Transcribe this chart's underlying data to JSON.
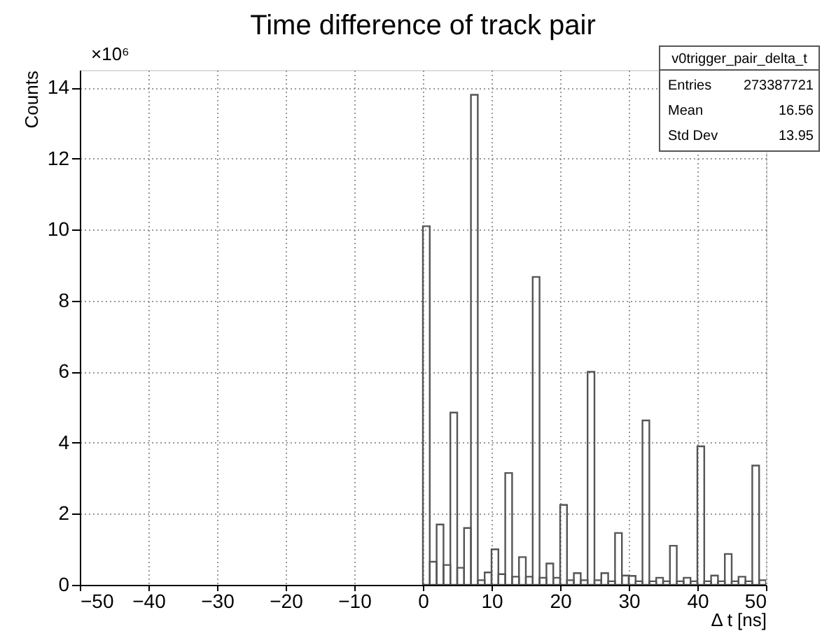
{
  "chart_data": {
    "type": "histogram",
    "title": "Time difference of track pair",
    "xlabel": "Δ t [ns]",
    "ylabel": "Counts",
    "bins": [
      0,
      1,
      2,
      3,
      4,
      5,
      6,
      7,
      8,
      9,
      10,
      11,
      12,
      13,
      14,
      15,
      16,
      17,
      18,
      19,
      20,
      21,
      22,
      23,
      24,
      25,
      26,
      27,
      28,
      29,
      30,
      31,
      32,
      33,
      34,
      35,
      36,
      37,
      38,
      39,
      40,
      41,
      42,
      43,
      44,
      45,
      46,
      47,
      48,
      49,
      50
    ],
    "values": [
      10.1,
      0.65,
      1.7,
      0.56,
      4.85,
      0.48,
      1.6,
      13.8,
      0.13,
      0.35,
      1.0,
      0.3,
      3.15,
      0.23,
      0.78,
      0.23,
      8.67,
      0.2,
      0.6,
      0.2,
      2.25,
      0.13,
      0.33,
      0.13,
      6.0,
      0.13,
      0.33,
      0.1,
      1.46,
      0.26,
      0.25,
      0.1,
      4.63,
      0.1,
      0.2,
      0.1,
      1.1,
      0.1,
      0.2,
      0.1,
      3.9,
      0.1,
      0.26,
      0.1,
      0.87,
      0.1,
      0.23,
      0.1,
      3.36,
      0.13
    ],
    "color": "#555555",
    "xlim": [
      -50,
      50
    ],
    "ylim": [
      0,
      14.5
    ],
    "xticks": [
      -50,
      -40,
      -30,
      -20,
      -10,
      0,
      10,
      20,
      30,
      40,
      50
    ],
    "yticks": [
      0,
      2,
      4,
      6,
      8,
      10,
      12,
      14
    ],
    "grid": true,
    "annotations": [
      "×10⁶",
      "v0trigger_pair_delta_t",
      "Entries",
      "273387721",
      "Mean",
      "16.56",
      "Std Dev",
      "13.95"
    ]
  }
}
